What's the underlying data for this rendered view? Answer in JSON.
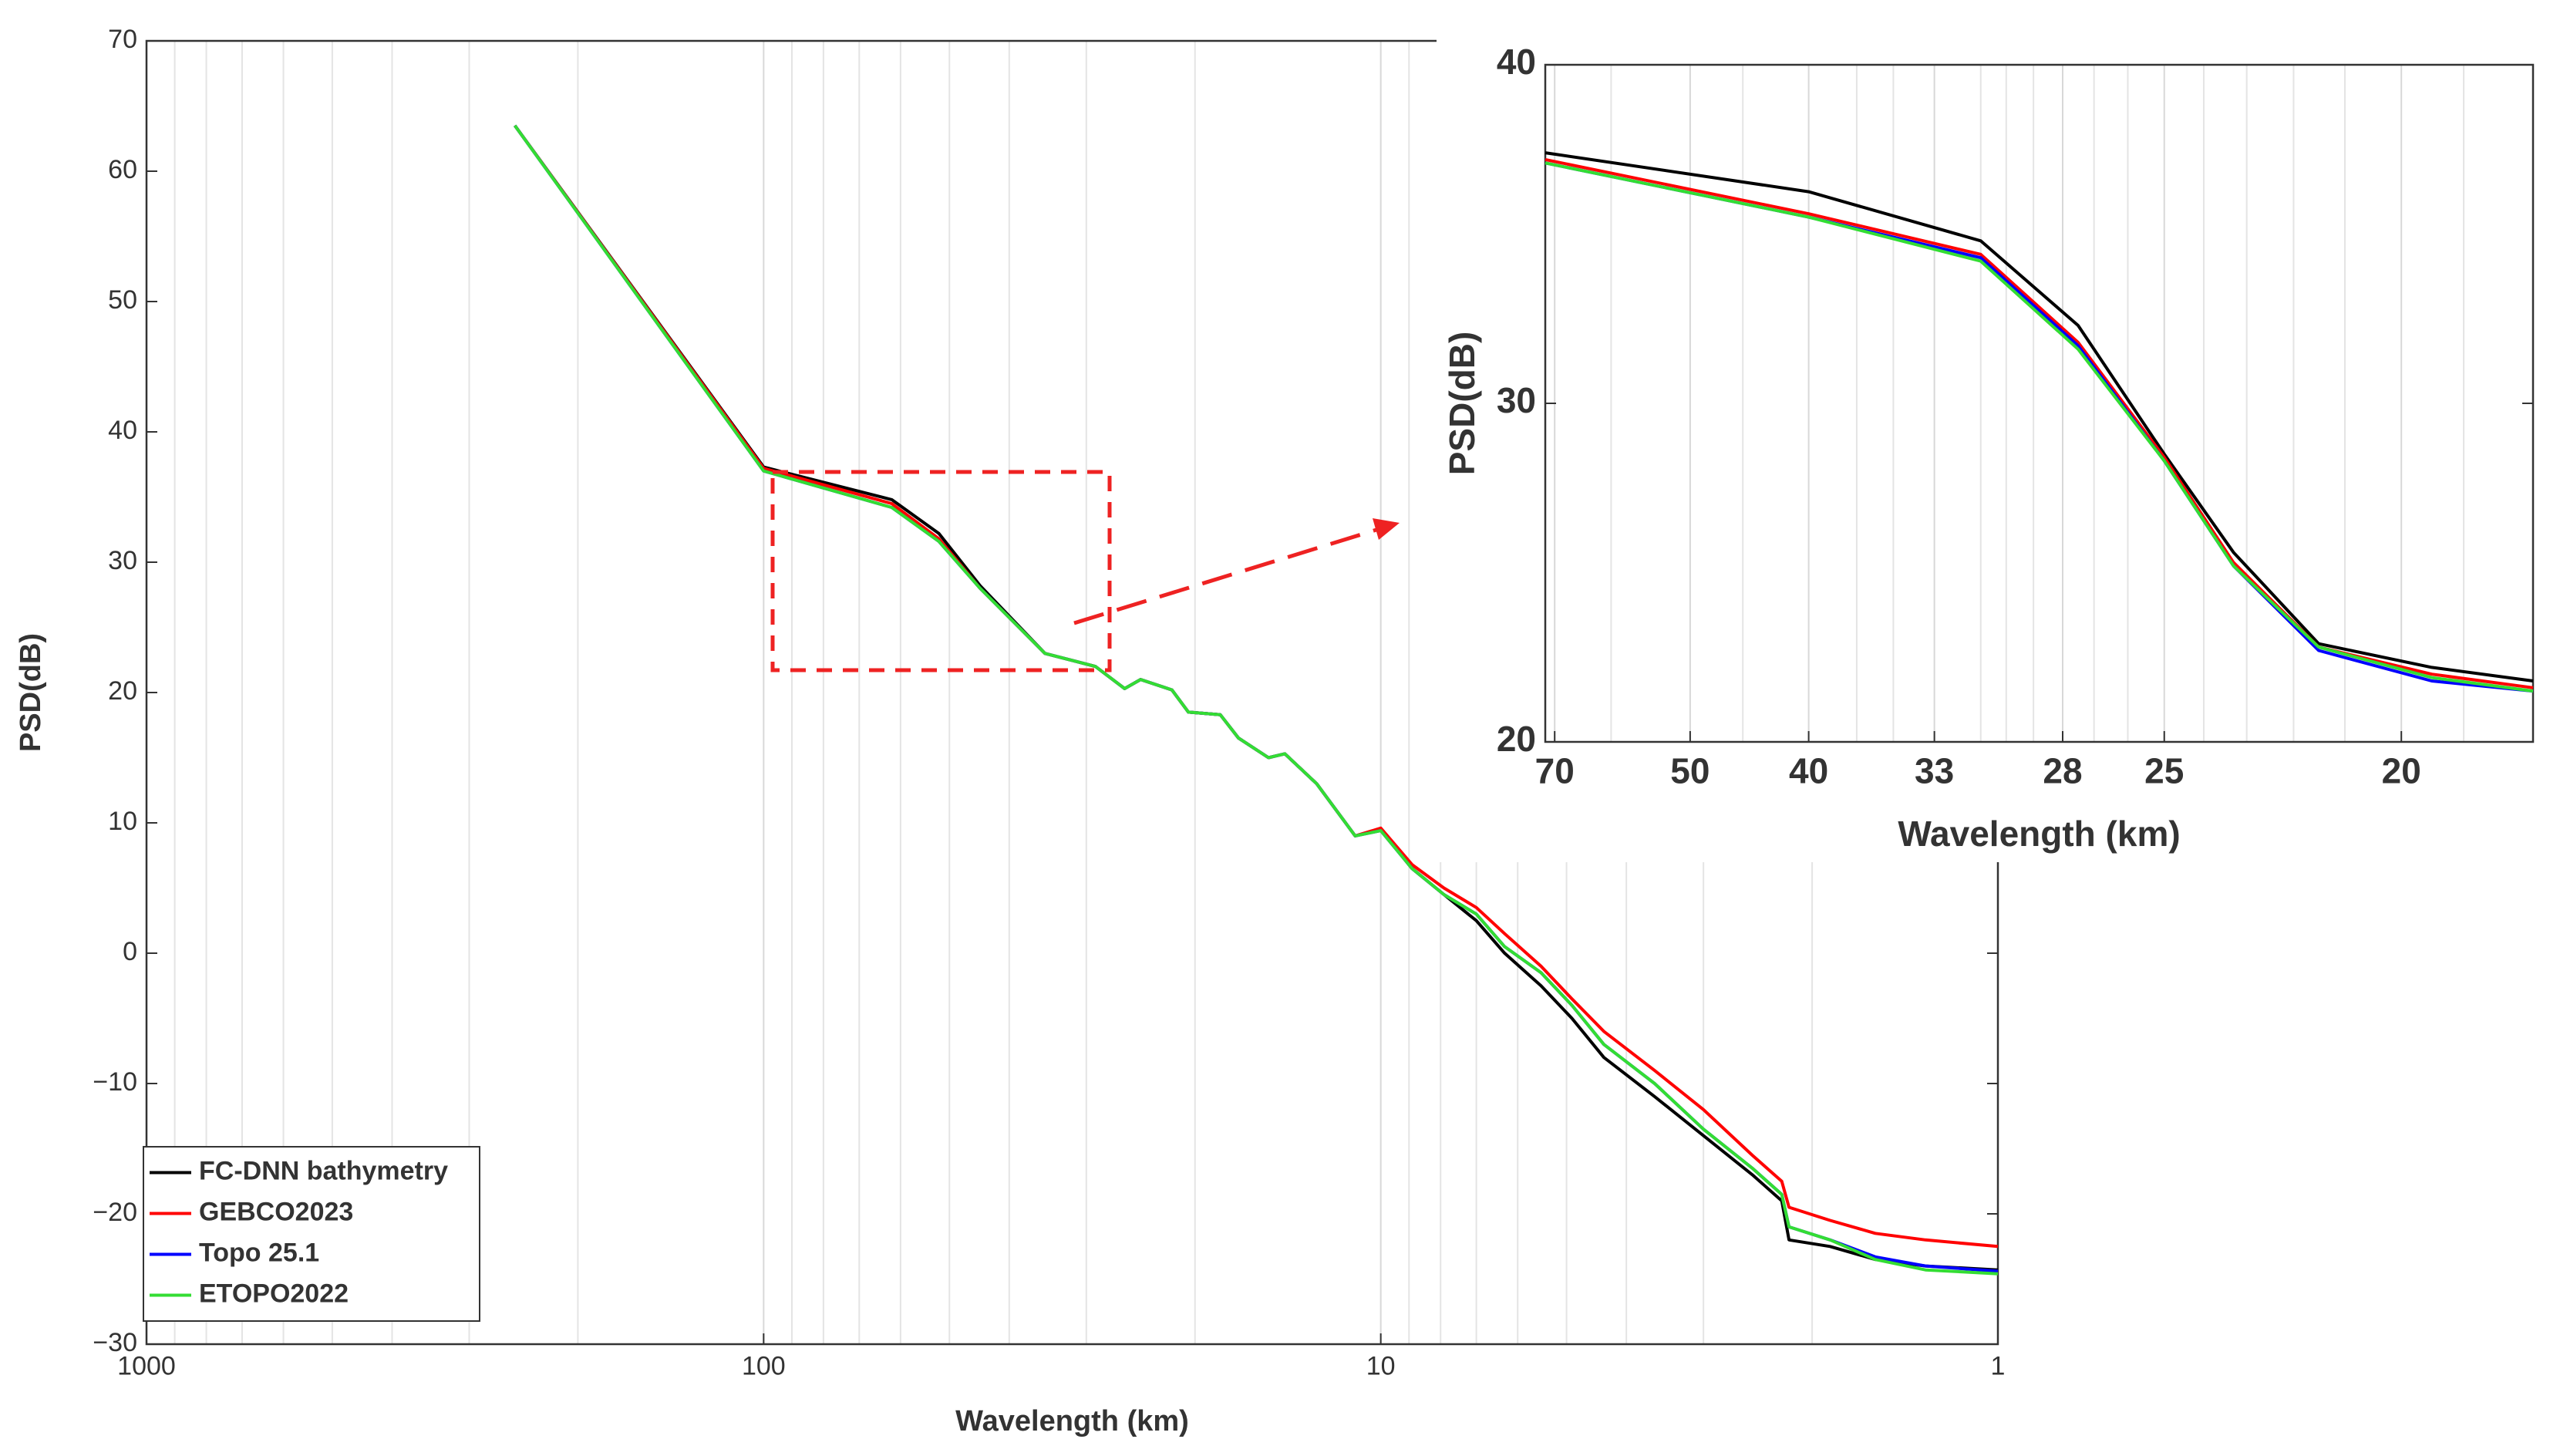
{
  "chart_data": [
    {
      "type": "line",
      "xlabel": "Wavelength (km)",
      "ylabel": "PSD(dB)",
      "xscale": "log",
      "grid": "x",
      "legend": "lower left",
      "xlim": [
        1000,
        1
      ],
      "ylim": [
        -30,
        70
      ],
      "xticks": [
        1000,
        100,
        10,
        1
      ],
      "xminorticks": [
        900,
        800,
        700,
        600,
        500,
        400,
        300,
        200,
        90,
        80,
        70,
        60,
        50,
        40,
        30,
        20,
        9,
        8,
        7,
        6,
        5,
        4,
        3,
        2
      ],
      "yticks": [
        {
          "value": -30,
          "label": "−30"
        },
        {
          "value": -20,
          "label": "−20"
        },
        {
          "value": -10,
          "label": "−10"
        },
        0,
        10,
        20,
        30,
        40,
        50,
        60,
        70
      ],
      "x": [
        253,
        100,
        62,
        52,
        44.6,
        35,
        29,
        26,
        24.5,
        21.8,
        20.5,
        18.2,
        17,
        15.2,
        14.3,
        12.7,
        11,
        10,
        8.9,
        7.9,
        7,
        6.3,
        5.5,
        4.9,
        4.35,
        3.6,
        3.0,
        2.5,
        2.24,
        2.18,
        1.87,
        1.58,
        1.31,
        1.0
      ],
      "series": [
        {
          "name": "FC-DNN bathymetry",
          "color": "#000000",
          "values": [
            63.5,
            37.3,
            34.8,
            32.2,
            28.2,
            23,
            22,
            20.3,
            21,
            20.2,
            18.5,
            18.3,
            16.5,
            15,
            15.3,
            13,
            9,
            9.5,
            6.5,
            4.5,
            2.5,
            0,
            -2.5,
            -5,
            -8,
            -11,
            -14,
            -17,
            -19,
            -22,
            -22.5,
            -23.5,
            -24,
            -24.3
          ]
        },
        {
          "name": "GEBCO2023",
          "color": "#ff0000",
          "values": [
            63.5,
            37.2,
            34.5,
            31.8,
            28,
            23,
            22,
            20.3,
            21,
            20.2,
            18.5,
            18.3,
            16.5,
            15,
            15.3,
            13,
            9,
            9.6,
            6.8,
            5,
            3.5,
            1.5,
            -1,
            -3.5,
            -6,
            -9,
            -12,
            -15.5,
            -17.5,
            -19.5,
            -20.5,
            -21.5,
            -22,
            -22.5
          ]
        },
        {
          "name": "Topo 25.1",
          "color": "#0000ff",
          "values": [
            63.5,
            37,
            34.2,
            31.6,
            28,
            23,
            22,
            20.3,
            21,
            20.2,
            18.5,
            18.3,
            16.5,
            15,
            15.3,
            13,
            9,
            9.4,
            6.5,
            4.5,
            3,
            0.5,
            -1.5,
            -4,
            -7,
            -10,
            -13.5,
            -16.5,
            -18.5,
            -21,
            -22,
            -23.3,
            -24,
            -24.4
          ]
        },
        {
          "name": "ETOPO2022",
          "color": "#33dd33",
          "values": [
            63.5,
            37,
            34.2,
            31.6,
            28,
            23,
            22,
            20.3,
            21,
            20.2,
            18.5,
            18.3,
            16.5,
            15,
            15.3,
            13,
            9,
            9.4,
            6.5,
            4.5,
            3,
            0.5,
            -1.5,
            -4,
            -7,
            -10,
            -13.5,
            -16.5,
            -18.5,
            -21,
            -22,
            -23.5,
            -24.3,
            -24.6
          ]
        }
      ]
    },
    {
      "type": "line",
      "xlabel": "Wavelength (km)",
      "ylabel": "PSD(dB)",
      "xscale": "reciprocal",
      "grid": "x",
      "xlim": [
        72,
        18
      ],
      "ylim": [
        20,
        40
      ],
      "xticks": [
        70,
        50,
        40,
        33,
        28,
        25,
        20
      ],
      "xminorticks": [
        60,
        45,
        37,
        35,
        31,
        30,
        29,
        27,
        26,
        24,
        23,
        22,
        21,
        19
      ],
      "yticks": [
        20,
        30,
        40
      ],
      "x": [
        72,
        40,
        31,
        27.5,
        25,
        23.3,
        21.5,
        19.5,
        18
      ],
      "series": [
        {
          "color": "#000000",
          "values": [
            37.4,
            36.25,
            34.8,
            32.3,
            28.5,
            25.6,
            22.9,
            22.2,
            21.8
          ]
        },
        {
          "color": "#ff0000",
          "values": [
            37.2,
            35.6,
            34.4,
            31.8,
            28.4,
            25.3,
            22.8,
            22,
            21.6
          ]
        },
        {
          "color": "#0000ff",
          "values": [
            37.1,
            35.5,
            34.3,
            31.7,
            28.3,
            25.2,
            22.7,
            21.8,
            21.5
          ]
        },
        {
          "color": "#33dd33",
          "values": [
            37.1,
            35.5,
            34.2,
            31.6,
            28.3,
            25.2,
            22.8,
            21.9,
            21.5
          ]
        }
      ]
    }
  ]
}
